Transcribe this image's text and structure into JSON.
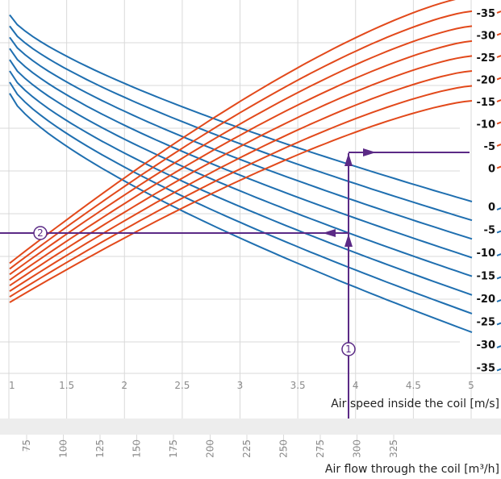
{
  "chart_data": {
    "type": "line",
    "title": "",
    "xlabel": "Air speed inside the coil [m/s]",
    "x2label": "Air flow through the coil [m³/h]",
    "xlim": [
      1,
      5
    ],
    "xticks": [
      "1",
      "1.5",
      "2",
      "2.5",
      "3",
      "3.5",
      "4",
      "4.5",
      "5"
    ],
    "x2ticks": [
      "75",
      "100",
      "125",
      "150",
      "175",
      "200",
      "225",
      "250",
      "275",
      "300",
      "325"
    ],
    "ylim": [
      0,
      100
    ],
    "grid": true,
    "colors": {
      "rising": "#e2491b",
      "falling": "#1f6fb0",
      "marker": "#5b2a86",
      "grid": "#d9d9d9"
    },
    "rising_labels": [
      "-35",
      "-30",
      "-25",
      "-20",
      "-15",
      "-10",
      "-5",
      "0"
    ],
    "falling_labels": [
      "0",
      "-5",
      "-10",
      "-15",
      "-20",
      "-25",
      "-30",
      "-35"
    ],
    "rising_series": [
      {
        "x": [
          1,
          5
        ],
        "y": [
          29.5,
          101
        ],
        "k": 1.0
      },
      {
        "x": [
          1,
          5
        ],
        "y": [
          28.0,
          97
        ],
        "k": 1.0
      },
      {
        "x": [
          1,
          5
        ],
        "y": [
          26.5,
          93
        ],
        "k": 1.0
      },
      {
        "x": [
          1,
          5
        ],
        "y": [
          25.0,
          89
        ],
        "k": 1.0
      },
      {
        "x": [
          1,
          5
        ],
        "y": [
          23.5,
          85
        ],
        "k": 1.0
      },
      {
        "x": [
          1,
          5
        ],
        "y": [
          22.0,
          81
        ],
        "k": 1.0
      },
      {
        "x": [
          1,
          5
        ],
        "y": [
          20.5,
          77
        ],
        "k": 1.0
      },
      {
        "x": [
          1,
          5
        ],
        "y": [
          19.0,
          73
        ],
        "k": 1.0
      }
    ],
    "falling_series": [
      {
        "x": [
          1,
          5
        ],
        "y": [
          96,
          46
        ]
      },
      {
        "x": [
          1,
          5
        ],
        "y": [
          93,
          41
        ]
      },
      {
        "x": [
          1,
          5
        ],
        "y": [
          90,
          36
        ]
      },
      {
        "x": [
          1,
          5
        ],
        "y": [
          87,
          31
        ]
      },
      {
        "x": [
          1,
          5
        ],
        "y": [
          84,
          26
        ]
      },
      {
        "x": [
          1,
          5
        ],
        "y": [
          81,
          21
        ]
      },
      {
        "x": [
          1,
          5
        ],
        "y": [
          78,
          16
        ]
      },
      {
        "x": [
          1,
          5
        ],
        "y": [
          75,
          11
        ]
      }
    ],
    "markers": [
      {
        "label": "1",
        "x": 3.75
      },
      {
        "label": "2",
        "x": 1.25
      }
    ]
  }
}
